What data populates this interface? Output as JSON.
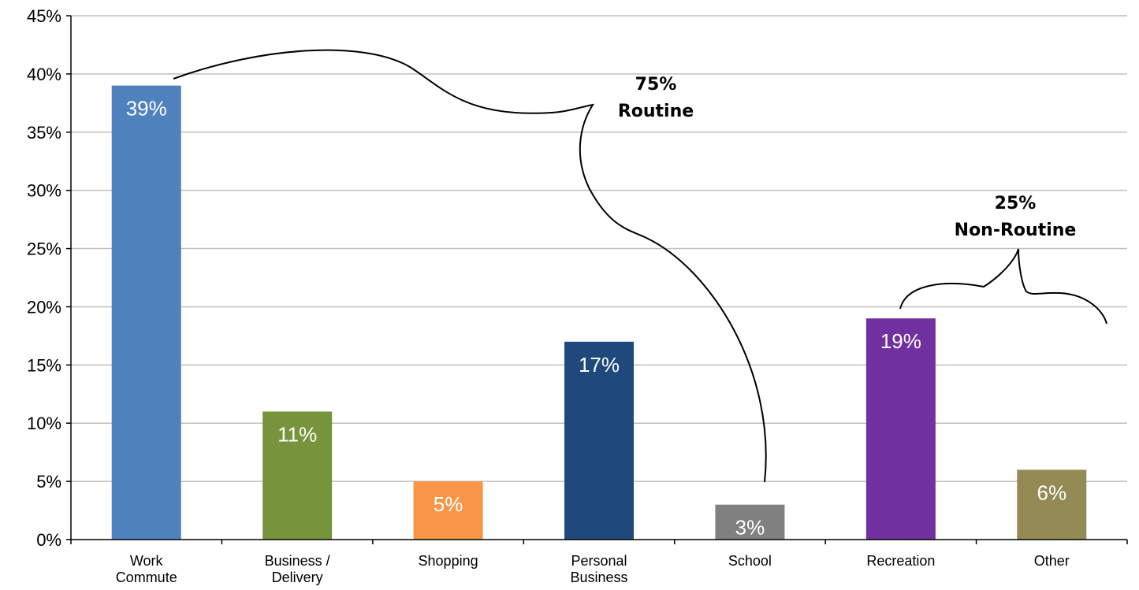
{
  "chart_data": {
    "type": "bar",
    "categories": [
      [
        "Work",
        "Commute"
      ],
      [
        "Business /",
        "Delivery"
      ],
      [
        "Shopping"
      ],
      [
        "Personal",
        "Business"
      ],
      [
        "School"
      ],
      [
        "Recreation"
      ],
      [
        "Other"
      ]
    ],
    "values": [
      39,
      11,
      5,
      17,
      3,
      19,
      6
    ],
    "data_labels": [
      "39%",
      "11%",
      "5%",
      "17%",
      "3%",
      "19%",
      "6%"
    ],
    "colors": [
      "#4f81bd",
      "#77933c",
      "#f79646",
      "#1f497d",
      "#808080",
      "#7030a0",
      "#948a54"
    ],
    "ylim": [
      0,
      45
    ],
    "yticks": [
      "0%",
      "5%",
      "10%",
      "15%",
      "20%",
      "25%",
      "30%",
      "35%",
      "40%",
      "45%"
    ],
    "grid": true,
    "title": "",
    "xlabel": "",
    "ylabel": "",
    "annotations": [
      {
        "lines": [
          "75%",
          "Routine"
        ],
        "spans": "Work Commute to School"
      },
      {
        "lines": [
          "25%",
          "Non-Routine"
        ],
        "spans": "Recreation to Other"
      }
    ]
  }
}
